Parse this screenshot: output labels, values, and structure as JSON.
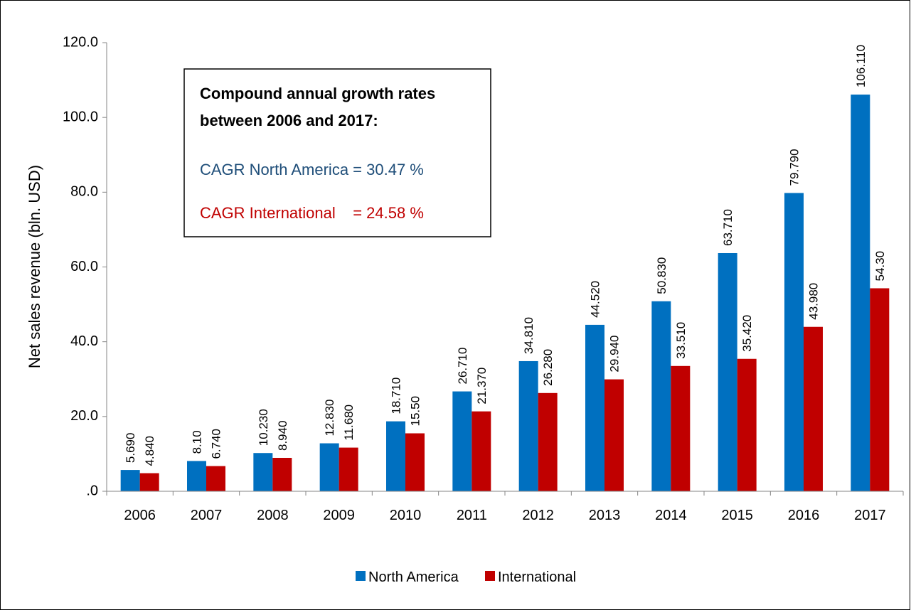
{
  "chart_data": {
    "type": "bar",
    "title": "",
    "xlabel": "",
    "ylabel": "Net sales revenue (bln. USD)",
    "ylim": [
      0,
      120
    ],
    "yticks": [
      ".0",
      "20.0",
      "40.0",
      "60.0",
      "80.0",
      "100.0",
      "120.0"
    ],
    "ytick_values": [
      0,
      20,
      40,
      60,
      80,
      100,
      120
    ],
    "categories": [
      "2006",
      "2007",
      "2008",
      "2009",
      "2010",
      "2011",
      "2012",
      "2013",
      "2014",
      "2015",
      "2016",
      "2017"
    ],
    "series": [
      {
        "name": "North America",
        "color": "#0070C0",
        "values": [
          5.69,
          8.1,
          10.23,
          12.83,
          18.71,
          26.71,
          34.81,
          44.52,
          50.83,
          63.71,
          79.79,
          106.11
        ],
        "labels": [
          "5.690",
          "8.10",
          "10.230",
          "12.830",
          "18.710",
          "26.710",
          "34.810",
          "44.520",
          "50.830",
          "63.710",
          "79.790",
          "106.110"
        ]
      },
      {
        "name": "International",
        "color": "#C00000",
        "values": [
          4.84,
          6.74,
          8.94,
          11.68,
          15.5,
          21.37,
          26.28,
          29.94,
          33.51,
          35.42,
          43.98,
          54.3
        ],
        "labels": [
          "4.840",
          "6.740",
          "8.940",
          "11.680",
          "15.50",
          "21.370",
          "26.280",
          "29.940",
          "33.510",
          "35.420",
          "43.980",
          "54.30"
        ]
      }
    ],
    "legend_position": "bottom",
    "grid": false,
    "annotation": {
      "heading_line1": "Compound annual growth rates",
      "heading_line2": "between 2006 and 2017:",
      "na_line": "CAGR North America = 30.47 %",
      "intl_line": "CAGR International    = 24.58 %",
      "na_color": "#1F4E79",
      "intl_color": "#C00000"
    }
  }
}
